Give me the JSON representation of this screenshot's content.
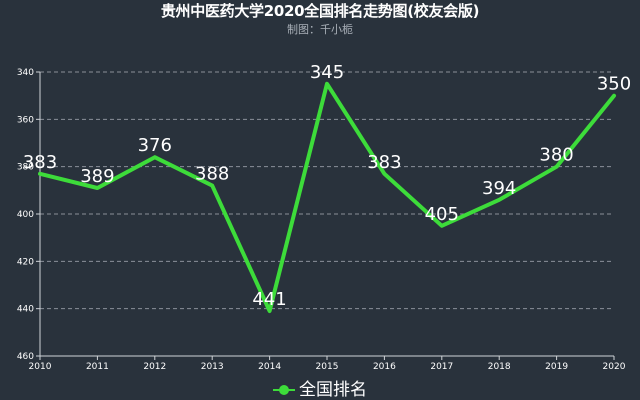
{
  "title": "贵州中医药大学2020全国排名走势图(校友会版)",
  "subtitle": "制图：千小栀",
  "legend": {
    "label": "全国排名",
    "color": "#3ddc3a"
  },
  "colors": {
    "background": "#29323c",
    "line": "#3ddc3a",
    "grid": "#8a9099",
    "axis": "#d0d4d8",
    "text": "#ffffff"
  },
  "chart_data": {
    "type": "line",
    "title": "贵州中医药大学2020全国排名走势图(校友会版)",
    "subtitle": "制图：千小栀",
    "xlabel": "",
    "ylabel": "",
    "categories": [
      "2010",
      "2011",
      "2012",
      "2013",
      "2014",
      "2015",
      "2016",
      "2017",
      "2018",
      "2019",
      "2020"
    ],
    "series": [
      {
        "name": "全国排名",
        "values": [
          383,
          389,
          376,
          388,
          441,
          345,
          383,
          405,
          394,
          380,
          350
        ]
      }
    ],
    "ylim": [
      340,
      460
    ],
    "y_inverted": true,
    "yticks": [
      340,
      360,
      380,
      400,
      420,
      440,
      460
    ],
    "grid": true,
    "legend_position": "bottom"
  }
}
